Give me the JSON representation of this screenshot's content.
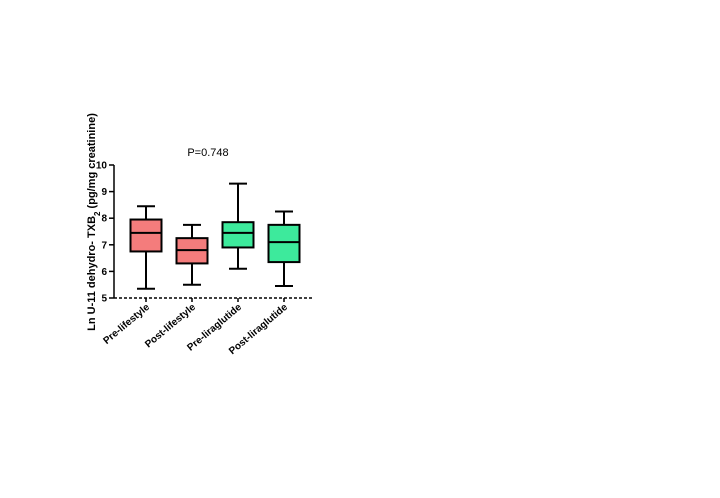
{
  "chart_data": {
    "type": "box",
    "annotation": "P=0.748",
    "ylabel_main": "Ln U-11 dehydro- TXB",
    "ylabel_sub": "2",
    "ylabel_unit": " (pg/mg creatinine)",
    "ylim": [
      5,
      10
    ],
    "yticks": [
      "5",
      "6",
      "7",
      "8",
      "9",
      "10"
    ],
    "grid": false,
    "categories": [
      "Pre-lifestyle",
      "Post-lifestyle",
      "Pre-liraglutide",
      "Post-liraglutide"
    ],
    "boxes": [
      {
        "name": "Pre-lifestyle",
        "min": 5.35,
        "q1": 6.75,
        "median": 7.45,
        "q3": 7.95,
        "max": 8.45,
        "color": "#f47c7c"
      },
      {
        "name": "Post-lifestyle",
        "min": 5.5,
        "q1": 6.3,
        "median": 6.8,
        "q3": 7.25,
        "max": 7.75,
        "color": "#f47c7c"
      },
      {
        "name": "Pre-liraglutide",
        "min": 6.1,
        "q1": 6.9,
        "median": 7.45,
        "q3": 7.85,
        "max": 9.3,
        "color": "#3dea9c"
      },
      {
        "name": "Post-liraglutide",
        "min": 5.45,
        "q1": 6.35,
        "median": 7.1,
        "q3": 7.75,
        "max": 8.25,
        "color": "#3dea9c"
      }
    ]
  }
}
